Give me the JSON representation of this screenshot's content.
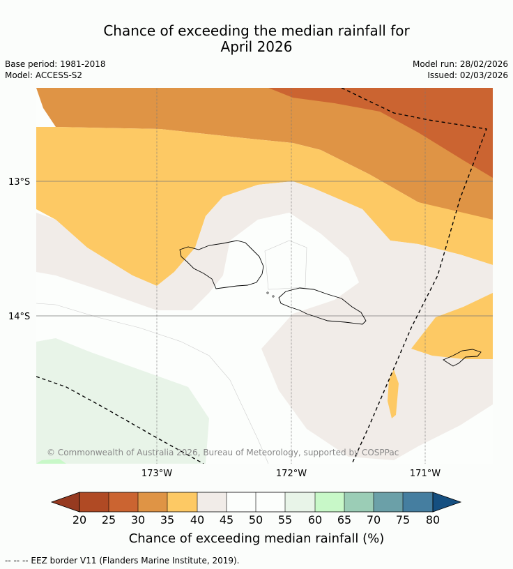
{
  "header": {
    "title_line1": "Chance of exceeding the median rainfall for",
    "title_line2": "April 2026",
    "base_period": "Base period: 1981-2018",
    "model": "Model: ACCESS-S2",
    "model_run": "Model run: 28/02/2026",
    "issued": "Issued: 02/03/2026"
  },
  "map": {
    "lat_labels": [
      "13°S",
      "14°S"
    ],
    "lon_labels": [
      "173°W",
      "172°W",
      "171°W"
    ],
    "attribution": "© Commonwealth of Australia 2026, Bureau of Meteorology, supported by COSPPac",
    "colors": {
      "p20_25": "#b04a24",
      "p25_30": "#cb6431",
      "p30_35": "#df9445",
      "p35_40": "#fdc964",
      "p40_45": "#f1ece8",
      "p45_55": "#fcfefc",
      "p55_60": "#e8f4e8",
      "p60_65": "#c8f8c8",
      "p65_70": "#9bcdb6",
      "p70_75": "#6ba0a8",
      "p75_80": "#457ea0",
      "above80": "#154f80",
      "below20": "#963a20"
    }
  },
  "colorbar": {
    "ticks": [
      "20",
      "25",
      "30",
      "35",
      "40",
      "45",
      "50",
      "55",
      "60",
      "65",
      "70",
      "75",
      "80"
    ],
    "title": "Chance of exceeding median rainfall (%)"
  },
  "footer": {
    "legend": "--  --  -- EEZ border V11 (Flanders Marine Institute, 2019)."
  }
}
